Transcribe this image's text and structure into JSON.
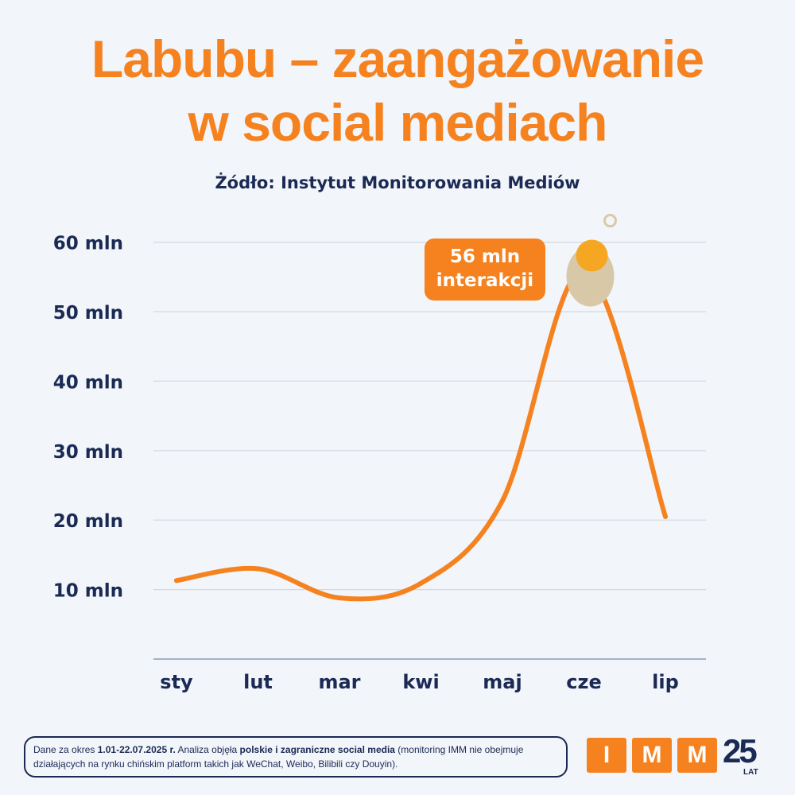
{
  "header": {
    "title_line1": "Labubu – zaangażowanie",
    "title_line2": "w social mediach",
    "source": "Żódło: Instytut Monitorowania Mediów"
  },
  "chart_data": {
    "type": "line",
    "title": "Labubu – zaangażowanie w social mediach",
    "categories": [
      "sty",
      "lut",
      "mar",
      "kwi",
      "maj",
      "cze",
      "lip"
    ],
    "values": [
      11.3,
      13,
      8.8,
      10.9,
      22.8,
      56,
      20.5
    ],
    "unit": "mln",
    "ylim": [
      0,
      60
    ],
    "yticks": [
      10,
      20,
      30,
      40,
      50,
      60
    ],
    "ytick_labels": [
      "10 mln",
      "20 mln",
      "30 mln",
      "40 mln",
      "50 mln",
      "60 mln"
    ],
    "grid": true,
    "annotation": {
      "line1": "56 mln",
      "line2": "interakcji",
      "category": "cze"
    },
    "color": "#f5821f"
  },
  "footer": {
    "note_prefix": "Dane za okres ",
    "note_period": "1.01-22.07.2025 r.",
    "note_mid": " Analiza objęła ",
    "note_scope": "polskie i zagraniczne social media",
    "note_suffix": " (monitoring IMM nie obejmuje działających na rynku chińskim platform takich jak WeChat, Weibo, Bilibili czy Douyin).",
    "logo": {
      "letters": [
        "I",
        "M",
        "M"
      ],
      "years": "25",
      "years_label": "LAT"
    }
  }
}
